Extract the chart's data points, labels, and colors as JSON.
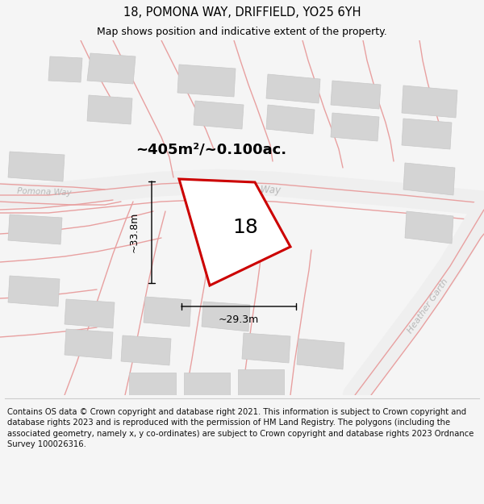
{
  "title": "18, POMONA WAY, DRIFFIELD, YO25 6YH",
  "subtitle": "Map shows position and indicative extent of the property.",
  "area_label": "~405m²/~0.100ac.",
  "plot_number": "18",
  "dim_width": "~29.3m",
  "dim_height": "~33.8m",
  "footer": "Contains OS data © Crown copyright and database right 2021. This information is subject to Crown copyright and database rights 2023 and is reproduced with the permission of HM Land Registry. The polygons (including the associated geometry, namely x, y co-ordinates) are subject to Crown copyright and database rights 2023 Ordnance Survey 100026316.",
  "bg_color": "#f5f5f5",
  "map_bg": "#ffffff",
  "road_color": "#e8a0a0",
  "building_color": "#d4d4d4",
  "plot_edge_color": "#cc0000",
  "plot_fill": "#ffffff",
  "road_label_color": "#b8b8b8",
  "title_fontsize": 10.5,
  "subtitle_fontsize": 9,
  "footer_fontsize": 7.2,
  "area_fontsize": 13,
  "number_fontsize": 18,
  "dim_fontsize": 9
}
